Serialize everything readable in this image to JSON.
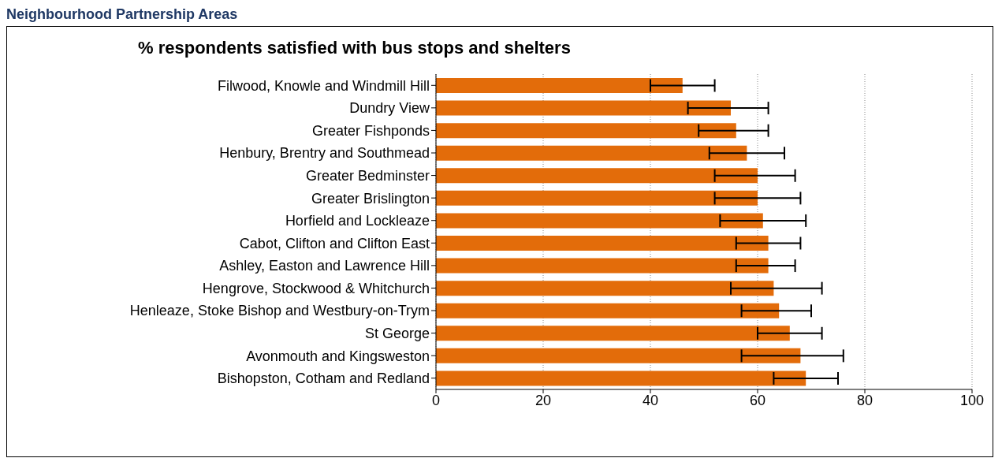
{
  "chart_data": {
    "type": "bar",
    "orientation": "horizontal",
    "title": "% respondents satisfied with bus stops and shelters",
    "annotations": [
      "Neighbourhood Partnership Areas"
    ],
    "categories": [
      "Filwood, Knowle and Windmill Hill",
      "Dundry View",
      "Greater Fishponds",
      "Henbury, Brentry and Southmead",
      "Greater Bedminster",
      "Greater Brislington",
      "Horfield and Lockleaze",
      "Cabot, Clifton and Clifton East",
      "Ashley, Easton and Lawrence Hill",
      "Hengrove, Stockwood & Whitchurch",
      "Henleaze, Stoke Bishop and Westbury-on-Trym",
      "St George",
      "Avonmouth and Kingsweston",
      "Bishopston, Cotham and Redland"
    ],
    "values": [
      46,
      55,
      56,
      58,
      60,
      60,
      61,
      62,
      62,
      63,
      64,
      66,
      68,
      69
    ],
    "errors": [
      [
        40,
        52
      ],
      [
        47,
        62
      ],
      [
        49,
        62
      ],
      [
        51,
        65
      ],
      [
        52,
        67
      ],
      [
        52,
        68
      ],
      [
        53,
        69
      ],
      [
        56,
        68
      ],
      [
        56,
        67
      ],
      [
        55,
        72
      ],
      [
        57,
        70
      ],
      [
        60,
        72
      ],
      [
        57,
        76
      ],
      [
        63,
        75
      ]
    ],
    "color": "#e36c0a",
    "xlim": [
      0,
      100
    ],
    "xticks": [
      0,
      20,
      40,
      60,
      80,
      100
    ],
    "grid": "x"
  }
}
